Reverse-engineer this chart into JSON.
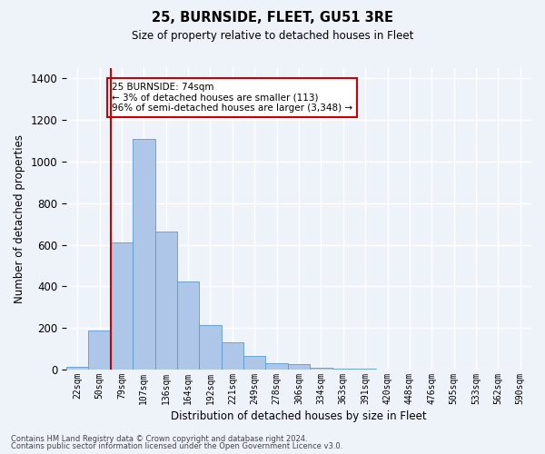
{
  "title": "25, BURNSIDE, FLEET, GU51 3RE",
  "subtitle": "Size of property relative to detached houses in Fleet",
  "xlabel": "Distribution of detached houses by size in Fleet",
  "ylabel": "Number of detached properties",
  "annotation_title": "25 BURNSIDE: 74sqm",
  "annotation_line1": "← 3% of detached houses are smaller (113)",
  "annotation_line2": "96% of semi-detached houses are larger (3,348) →",
  "footer1": "Contains HM Land Registry data © Crown copyright and database right 2024.",
  "footer2": "Contains public sector information licensed under the Open Government Licence v3.0.",
  "bar_color": "#aec6e8",
  "bar_edge_color": "#5b9bd5",
  "annotation_box_color": "#ffffff",
  "annotation_box_edge_color": "#cc0000",
  "categories": [
    "22sqm",
    "50sqm",
    "79sqm",
    "107sqm",
    "136sqm",
    "164sqm",
    "192sqm",
    "221sqm",
    "249sqm",
    "278sqm",
    "306sqm",
    "334sqm",
    "363sqm",
    "391sqm",
    "420sqm",
    "448sqm",
    "476sqm",
    "505sqm",
    "533sqm",
    "562sqm",
    "590sqm"
  ],
  "values": [
    15,
    190,
    610,
    1110,
    665,
    425,
    215,
    130,
    65,
    30,
    25,
    10,
    5,
    5,
    0,
    0,
    0,
    0,
    0,
    0,
    0
  ],
  "ylim": [
    0,
    1450
  ],
  "yticks": [
    0,
    200,
    400,
    600,
    800,
    1000,
    1200,
    1400
  ],
  "background_color": "#eef2f9",
  "plot_background": "#eef2f9",
  "grid_color": "#ffffff",
  "vertical_line_color": "#cc0000",
  "vertical_line_x": 1.5
}
